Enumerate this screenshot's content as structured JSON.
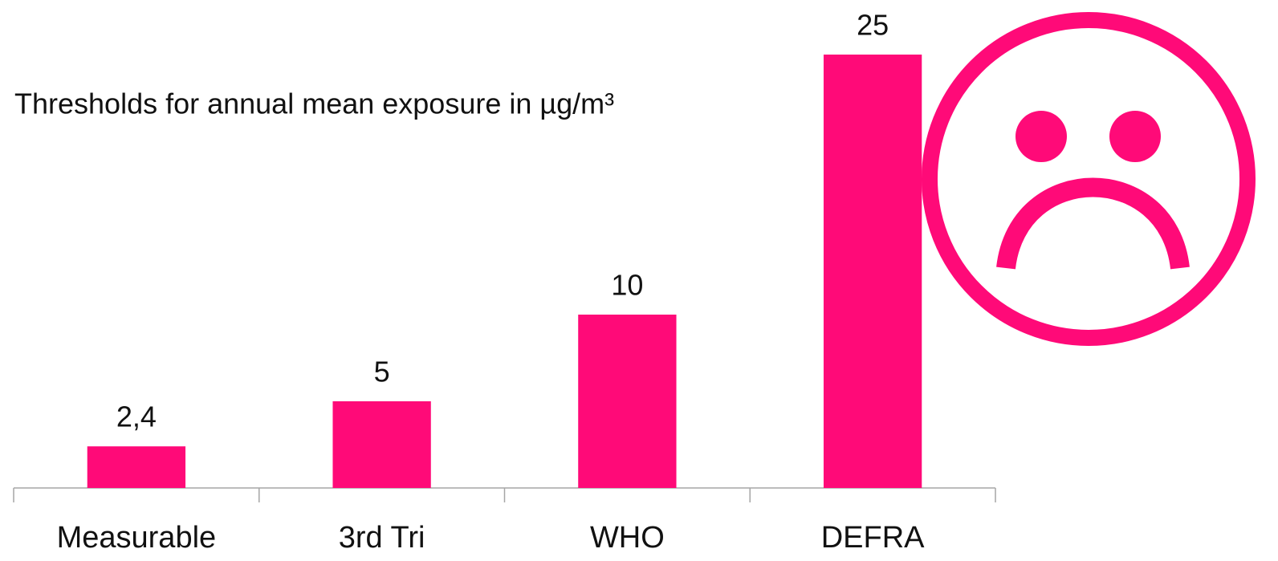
{
  "chart_data": {
    "type": "bar",
    "title": "Thresholds for annual mean exposure in µg/m³",
    "categories": [
      "Measurable",
      "3rd Tri",
      "WHO",
      "DEFRA"
    ],
    "values": [
      2.4,
      5,
      10,
      25
    ],
    "value_labels": [
      "2,4",
      "5",
      "10",
      "25"
    ],
    "color": "#ff0a78"
  }
}
